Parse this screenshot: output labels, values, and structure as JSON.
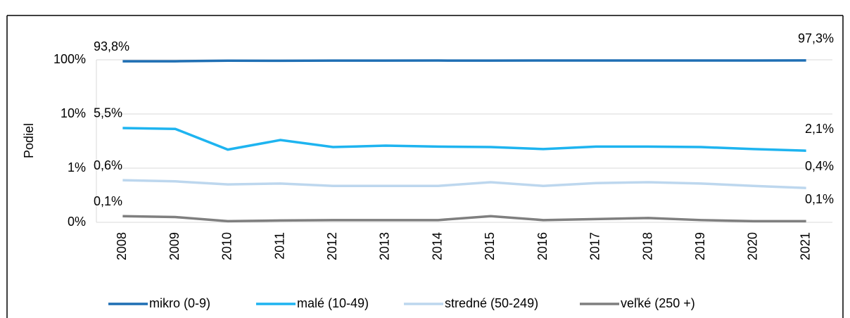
{
  "chart_data": {
    "type": "line",
    "y_label": "Podiel",
    "categories": [
      "2008",
      "2009",
      "2010",
      "2011",
      "2012",
      "2013",
      "2014",
      "2015",
      "2016",
      "2017",
      "2018",
      "2019",
      "2020",
      "2021"
    ],
    "series": [
      {
        "name": "mikro (0-9)",
        "color": "#1f6fb4",
        "values": [
          93.8,
          94.0,
          96.5,
          96.0,
          96.8,
          96.8,
          96.9,
          96.7,
          97.1,
          97.0,
          97.0,
          97.1,
          97.2,
          97.3
        ],
        "value_labels": [
          "93,8%",
          null,
          null,
          null,
          null,
          null,
          null,
          null,
          null,
          null,
          null,
          null,
          null,
          "97,3%"
        ]
      },
      {
        "name": "malé (10-49)",
        "color": "#1eb4f0",
        "values": [
          5.5,
          5.3,
          2.2,
          3.3,
          2.45,
          2.6,
          2.5,
          2.45,
          2.25,
          2.5,
          2.5,
          2.45,
          2.25,
          2.1
        ],
        "value_labels": [
          "5,5%",
          null,
          null,
          null,
          null,
          null,
          null,
          null,
          null,
          null,
          null,
          null,
          null,
          "2,1%"
        ]
      },
      {
        "name": "stredné (50-249)",
        "color": "#bdd7ee",
        "values": [
          0.6,
          0.57,
          0.5,
          0.52,
          0.47,
          0.47,
          0.47,
          0.55,
          0.47,
          0.53,
          0.55,
          0.52,
          0.47,
          0.43
        ],
        "value_labels": [
          "0,6%",
          null,
          null,
          null,
          null,
          null,
          null,
          null,
          null,
          null,
          null,
          null,
          null,
          "0,4%"
        ]
      },
      {
        "name": "veľké (250 +)",
        "color": "#7f7f7f",
        "values": [
          0.13,
          0.125,
          0.105,
          0.108,
          0.11,
          0.11,
          0.11,
          0.13,
          0.11,
          0.115,
          0.12,
          0.11,
          0.105,
          0.105
        ],
        "value_labels": [
          "0,1%",
          null,
          null,
          null,
          null,
          null,
          null,
          null,
          null,
          null,
          null,
          null,
          null,
          "0,1%"
        ]
      }
    ],
    "log_scale": true,
    "ylim": [
      0.1,
      100
    ],
    "yticks": [
      {
        "value": 0.1,
        "label": "0%"
      },
      {
        "value": 1,
        "label": "1%"
      },
      {
        "value": 10,
        "label": "10%"
      },
      {
        "value": 100,
        "label": "100%"
      }
    ],
    "grid": true,
    "legend": "bottom"
  }
}
